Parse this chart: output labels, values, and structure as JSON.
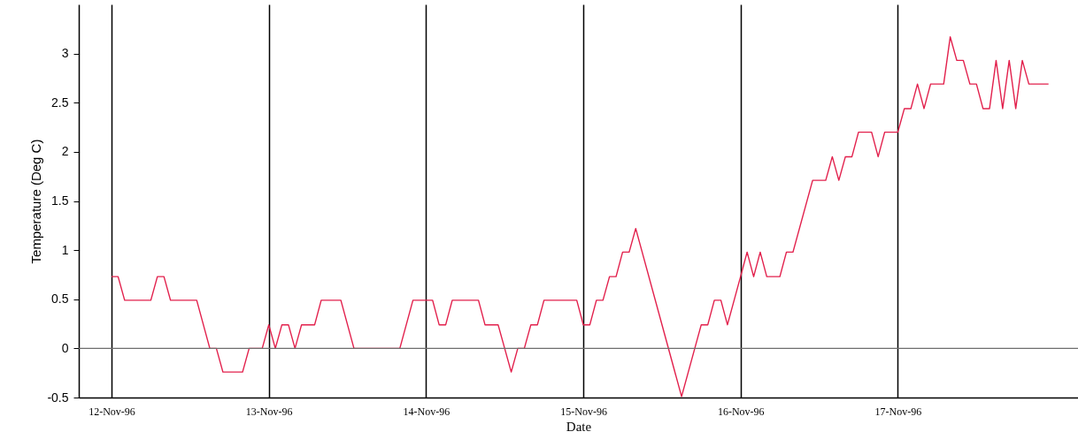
{
  "chart_data": {
    "type": "line",
    "xlabel": "Date",
    "ylabel": "Temperature (Deg C)",
    "x": [
      "1996-11-12T00:00",
      "1996-11-12T01:00",
      "1996-11-12T02:00",
      "1996-11-12T06:00",
      "1996-11-12T07:00",
      "1996-11-12T08:00",
      "1996-11-12T09:00",
      "1996-11-12T13:00",
      "1996-11-12T15:00",
      "1996-11-12T16:00",
      "1996-11-12T17:00",
      "1996-11-12T20:00",
      "1996-11-12T21:00",
      "1996-11-12T23:00",
      "1996-11-13T00:00",
      "1996-11-13T01:00",
      "1996-11-13T02:00",
      "1996-11-13T03:00",
      "1996-11-13T04:00",
      "1996-11-13T05:00",
      "1996-11-13T07:00",
      "1996-11-13T08:00",
      "1996-11-13T11:00",
      "1996-11-13T13:00",
      "1996-11-13T20:00",
      "1996-11-13T22:00",
      "1996-11-14T01:00",
      "1996-11-14T02:00",
      "1996-11-14T03:00",
      "1996-11-14T04:00",
      "1996-11-14T08:00",
      "1996-11-14T09:00",
      "1996-11-14T11:00",
      "1996-11-14T13:00",
      "1996-11-14T14:00",
      "1996-11-14T15:00",
      "1996-11-14T16:00",
      "1996-11-14T17:00",
      "1996-11-14T18:00",
      "1996-11-14T23:00",
      "1996-11-15T00:00",
      "1996-11-15T01:00",
      "1996-11-15T02:00",
      "1996-11-15T03:00",
      "1996-11-15T04:00",
      "1996-11-15T05:00",
      "1996-11-15T06:00",
      "1996-11-15T07:00",
      "1996-11-15T08:00",
      "1996-11-15T15:00",
      "1996-11-15T18:00",
      "1996-11-15T19:00",
      "1996-11-15T20:00",
      "1996-11-15T21:00",
      "1996-11-15T22:00",
      "1996-11-16T00:00",
      "1996-11-16T01:00",
      "1996-11-16T02:00",
      "1996-11-16T03:00",
      "1996-11-16T04:00",
      "1996-11-16T06:00",
      "1996-11-16T07:00",
      "1996-11-16T08:00",
      "1996-11-16T11:00",
      "1996-11-16T13:00",
      "1996-11-16T14:00",
      "1996-11-16T15:00",
      "1996-11-16T16:00",
      "1996-11-16T17:00",
      "1996-11-16T18:00",
      "1996-11-16T20:00",
      "1996-11-16T21:00",
      "1996-11-16T22:00",
      "1996-11-17T00:00",
      "1996-11-17T01:00",
      "1996-11-17T02:00",
      "1996-11-17T03:00",
      "1996-11-17T04:00",
      "1996-11-17T05:00",
      "1996-11-17T07:00",
      "1996-11-17T08:00",
      "1996-11-17T09:00",
      "1996-11-17T10:00",
      "1996-11-17T11:00",
      "1996-11-17T12:00",
      "1996-11-17T13:00",
      "1996-11-17T14:00",
      "1996-11-17T15:00",
      "1996-11-17T16:00",
      "1996-11-17T17:00",
      "1996-11-17T18:00",
      "1996-11-17T19:00",
      "1996-11-17T20:00",
      "1996-11-17T23:00"
    ],
    "series": [
      {
        "color": "#e2204c",
        "values": [
          0.73,
          0.73,
          0.49,
          0.49,
          0.73,
          0.73,
          0.49,
          0.49,
          0,
          0,
          -0.24,
          -0.24,
          0,
          0,
          0.24,
          0,
          0.24,
          0.24,
          0,
          0.24,
          0.24,
          0.49,
          0.49,
          0,
          0,
          0.49,
          0.49,
          0.24,
          0.24,
          0.49,
          0.49,
          0.24,
          0.24,
          -0.24,
          0,
          0,
          0.24,
          0.24,
          0.49,
          0.49,
          0.24,
          0.24,
          0.49,
          0.49,
          0.73,
          0.73,
          0.98,
          0.98,
          1.22,
          -0.49,
          0.24,
          0.24,
          0.49,
          0.49,
          0.24,
          0.73,
          0.98,
          0.73,
          0.98,
          0.73,
          0.73,
          0.98,
          0.98,
          1.71,
          1.71,
          1.95,
          1.71,
          1.95,
          1.95,
          2.2,
          2.2,
          1.95,
          2.2,
          2.2,
          2.44,
          2.44,
          2.69,
          2.44,
          2.69,
          2.69,
          3.17,
          2.93,
          2.93,
          2.69,
          2.69,
          2.44,
          2.44,
          2.93,
          2.44,
          2.93,
          2.44,
          2.93,
          2.69,
          2.69
        ]
      }
    ],
    "xlim": [
      "1996-11-11T19:00",
      "1996-11-18T03:30"
    ],
    "xticks": [
      {
        "value": "1996-11-12",
        "label": "12-Nov-96"
      },
      {
        "value": "1996-11-13",
        "label": "13-Nov-96"
      },
      {
        "value": "1996-11-14",
        "label": "14-Nov-96"
      },
      {
        "value": "1996-11-15",
        "label": "15-Nov-96"
      },
      {
        "value": "1996-11-16",
        "label": "16-Nov-96"
      },
      {
        "value": "1996-11-17",
        "label": "17-Nov-96"
      }
    ],
    "ylim": [
      -0.5,
      3.5
    ],
    "yticks": [
      -0.5,
      0,
      0.5,
      1,
      1.5,
      2,
      2.5,
      3
    ],
    "grid": "x",
    "ref_lines": [
      {
        "axis": "y",
        "value": 0,
        "color": "#6e6e6e"
      }
    ]
  }
}
